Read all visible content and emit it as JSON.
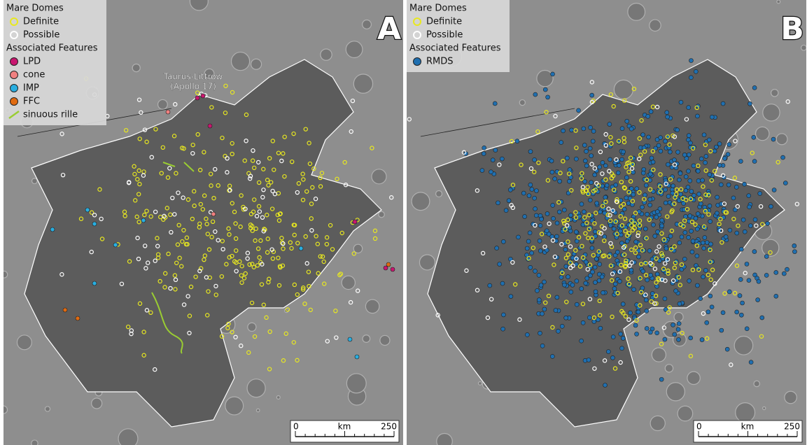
{
  "panels": [
    {
      "label": "A",
      "legend": [
        {
          "title": "Mare Domes",
          "items": [
            "Definite",
            "Possible"
          ]
        },
        {
          "title": "Associated Features",
          "items": [
            "LPD",
            "cone",
            "IMP",
            "FFC",
            "sinuous rille"
          ]
        }
      ],
      "annotation": [
        "Taurus-Littrow",
        "(Apollo 17)"
      ],
      "scale_bar": {
        "start": "0",
        "unit": "km",
        "end": "250"
      }
    },
    {
      "label": "B",
      "legend": [
        {
          "title": "Mare Domes",
          "items": [
            "Definite",
            "Possible"
          ]
        },
        {
          "title": "Associated Features",
          "items": [
            "RMDS"
          ]
        }
      ],
      "scale_bar": {
        "start": "0",
        "unit": "km",
        "end": "250"
      }
    }
  ]
}
